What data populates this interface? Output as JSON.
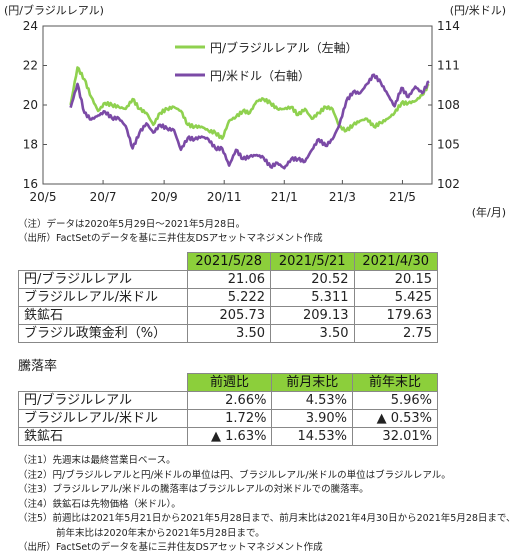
{
  "chart_data": {
    "type": "line",
    "left_axis_label": "(円/ブラジルレアル)",
    "right_axis_label": "(円/米ドル)",
    "x_unit_label": "(年/月)",
    "left_ylim": [
      16,
      24
    ],
    "left_ticks": [
      "16",
      "18",
      "20",
      "22",
      "24"
    ],
    "right_ylim": [
      102,
      114
    ],
    "right_ticks": [
      "102",
      "105",
      "108",
      "111",
      "114"
    ],
    "x_ticks": [
      "20/5",
      "20/7",
      "20/9",
      "20/11",
      "21/1",
      "21/3",
      "21/5"
    ],
    "grid": false,
    "legend_position": "top-center",
    "series": [
      {
        "name": "円/ブラジルレアル（左軸）",
        "axis": "left",
        "color": "#8fd14f",
        "x": [
          "2020-05-29",
          "2020-06-05",
          "2020-06-12",
          "2020-06-19",
          "2020-06-26",
          "2020-07-03",
          "2020-07-10",
          "2020-07-17",
          "2020-07-24",
          "2020-07-31",
          "2020-08-07",
          "2020-08-14",
          "2020-08-21",
          "2020-08-28",
          "2020-09-04",
          "2020-09-11",
          "2020-09-18",
          "2020-09-25",
          "2020-10-02",
          "2020-10-09",
          "2020-10-16",
          "2020-10-23",
          "2020-10-30",
          "2020-11-06",
          "2020-11-13",
          "2020-11-20",
          "2020-11-27",
          "2020-12-04",
          "2020-12-11",
          "2020-12-18",
          "2020-12-25",
          "2021-01-01",
          "2021-01-08",
          "2021-01-15",
          "2021-01-22",
          "2021-01-29",
          "2021-02-05",
          "2021-02-12",
          "2021-02-19",
          "2021-02-26",
          "2021-03-05",
          "2021-03-12",
          "2021-03-19",
          "2021-03-26",
          "2021-04-02",
          "2021-04-09",
          "2021-04-16",
          "2021-04-23",
          "2021-04-30",
          "2021-05-07",
          "2021-05-14",
          "2021-05-21",
          "2021-05-28"
        ],
        "values": [
          20.0,
          21.9,
          21.3,
          20.4,
          19.7,
          20.1,
          20.0,
          19.9,
          19.8,
          20.3,
          19.8,
          19.6,
          19.0,
          19.6,
          19.8,
          19.9,
          19.7,
          19.0,
          18.9,
          18.9,
          18.7,
          18.6,
          18.3,
          19.2,
          19.4,
          19.7,
          19.6,
          20.2,
          20.3,
          20.1,
          19.8,
          19.8,
          19.9,
          19.5,
          19.8,
          19.3,
          19.6,
          19.9,
          19.8,
          18.9,
          18.7,
          19.0,
          19.2,
          19.3,
          18.9,
          19.1,
          19.3,
          19.6,
          20.1,
          20.1,
          20.2,
          20.5,
          21.06
        ]
      },
      {
        "name": "円/米ドル（右軸）",
        "axis": "right",
        "color": "#7b4aa6",
        "x": [
          "2020-05-29",
          "2020-06-05",
          "2020-06-12",
          "2020-06-19",
          "2020-06-26",
          "2020-07-03",
          "2020-07-10",
          "2020-07-17",
          "2020-07-24",
          "2020-07-31",
          "2020-08-07",
          "2020-08-14",
          "2020-08-21",
          "2020-08-28",
          "2020-09-04",
          "2020-09-11",
          "2020-09-18",
          "2020-09-25",
          "2020-10-02",
          "2020-10-09",
          "2020-10-16",
          "2020-10-23",
          "2020-10-30",
          "2020-11-06",
          "2020-11-13",
          "2020-11-20",
          "2020-11-27",
          "2020-12-04",
          "2020-12-11",
          "2020-12-18",
          "2020-12-25",
          "2021-01-01",
          "2021-01-08",
          "2021-01-15",
          "2021-01-22",
          "2021-01-29",
          "2021-02-05",
          "2021-02-12",
          "2021-02-19",
          "2021-02-26",
          "2021-03-05",
          "2021-03-12",
          "2021-03-19",
          "2021-03-26",
          "2021-04-02",
          "2021-04-09",
          "2021-04-16",
          "2021-04-23",
          "2021-04-30",
          "2021-05-07",
          "2021-05-14",
          "2021-05-21",
          "2021-05-28"
        ],
        "values": [
          107.8,
          109.6,
          107.4,
          106.9,
          107.2,
          107.5,
          107.0,
          107.0,
          106.4,
          104.7,
          105.9,
          106.6,
          105.9,
          106.5,
          106.2,
          106.1,
          104.6,
          105.5,
          105.4,
          105.6,
          105.4,
          104.7,
          104.7,
          103.4,
          104.6,
          103.9,
          104.1,
          104.2,
          104.0,
          103.3,
          103.6,
          103.2,
          103.9,
          103.9,
          103.7,
          104.6,
          105.4,
          104.9,
          105.4,
          106.5,
          108.3,
          109.0,
          108.9,
          109.6,
          110.3,
          109.7,
          108.8,
          107.9,
          109.3,
          108.6,
          109.4,
          108.9,
          109.8
        ]
      }
    ]
  },
  "notes_top": [
    "（注）データは2020年5月29日～2021年5月28日。",
    "（出所）FactSetのデータを基に三井住友DSアセットマネジメント作成"
  ],
  "table1": {
    "headers": [
      "2021/5/28",
      "2021/5/21",
      "2021/4/30"
    ],
    "rows": [
      {
        "label": "円/ブラジルレアル",
        "values": [
          "21.06",
          "20.52",
          "20.15"
        ]
      },
      {
        "label": "ブラジルレアル/米ドル",
        "values": [
          "5.222",
          "5.311",
          "5.425"
        ]
      },
      {
        "label": "鉄鉱石",
        "values": [
          "205.73",
          "209.13",
          "179.63"
        ]
      },
      {
        "label": "ブラジル政策金利（%）",
        "values": [
          "3.50",
          "3.50",
          "2.75"
        ]
      }
    ]
  },
  "table2": {
    "title": "騰落率",
    "headers": [
      "前週比",
      "前月末比",
      "前年末比"
    ],
    "rows": [
      {
        "label": "円/ブラジルレアル",
        "values": [
          "2.66%",
          "4.53%",
          "5.96%"
        ]
      },
      {
        "label": "ブラジルレアル/米ドル",
        "values": [
          "1.72%",
          "3.90%",
          "▲ 0.53%"
        ]
      },
      {
        "label": "鉄鉱石",
        "values": [
          "▲ 1.63%",
          "14.53%",
          "32.01%"
        ]
      }
    ]
  },
  "footnotes": [
    "（注1）先週末は最終営業日ベース。",
    "（注2）円/ブラジルレアルと円/米ドルの単位は円、ブラジルレアル/米ドルの単位はブラジルレアル。",
    "（注3）ブラジルレアル/米ドルの騰落率はブラジルレアルの対米ドルでの騰落率。",
    "（注4）鉄鉱石は先物価格（米ドル）。",
    "（注5）前週比は2021年5月21日から2021年5月28日まで、前月末比は2021年4月30日から2021年5月28日まで、",
    "　　　　前年末比は2020年末から2021年5月28日まで。",
    "（出所）FactSetのデータを基に三井住友DSアセットマネジメント作成"
  ]
}
